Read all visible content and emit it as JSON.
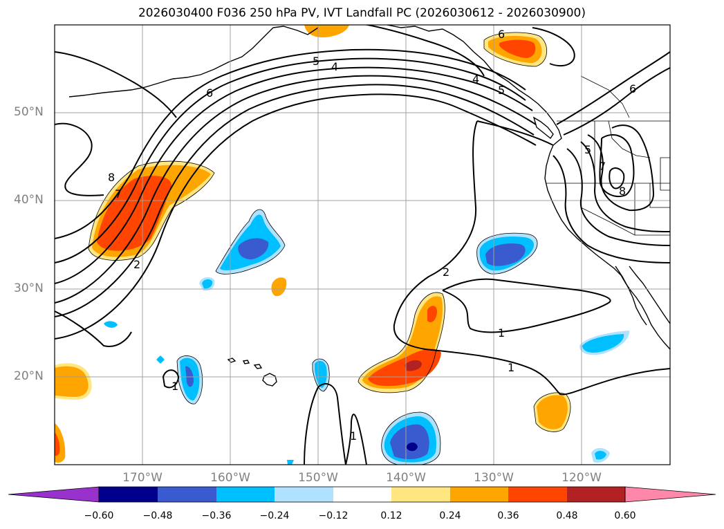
{
  "title": "2026030400 F036 250 hPa PV, IVT Landfall PC (2026030612 - 2026030900)",
  "map": {
    "projection": "cylindrical",
    "lat_range": [
      10,
      60
    ],
    "lon_range": [
      -180,
      -110
    ],
    "grid": true,
    "lat_labels": [
      "50°N",
      "40°N",
      "30°N",
      "20°N"
    ],
    "lon_labels": [
      "170°W",
      "160°W",
      "150°W",
      "140°W",
      "130°W",
      "120°W"
    ]
  },
  "contour_labels": [
    "6",
    "5",
    "4",
    "8",
    "7",
    "2",
    "1",
    "1",
    "1",
    "2",
    "6",
    "6",
    "5",
    "7",
    "8",
    "4",
    "5"
  ],
  "colorbar": {
    "ticks": [
      "−0.60",
      "−0.48",
      "−0.36",
      "−0.24",
      "−0.12",
      "0.12",
      "0.24",
      "0.36",
      "0.48",
      "0.60"
    ],
    "colors": [
      "#9932cc",
      "#00008b",
      "#3a5bd0",
      "#00bfff",
      "#b0e2ff",
      "#ffffff",
      "#ffe680",
      "#ffa500",
      "#ff4500",
      "#b22222",
      "#ff88aa"
    ],
    "extend": "both"
  }
}
